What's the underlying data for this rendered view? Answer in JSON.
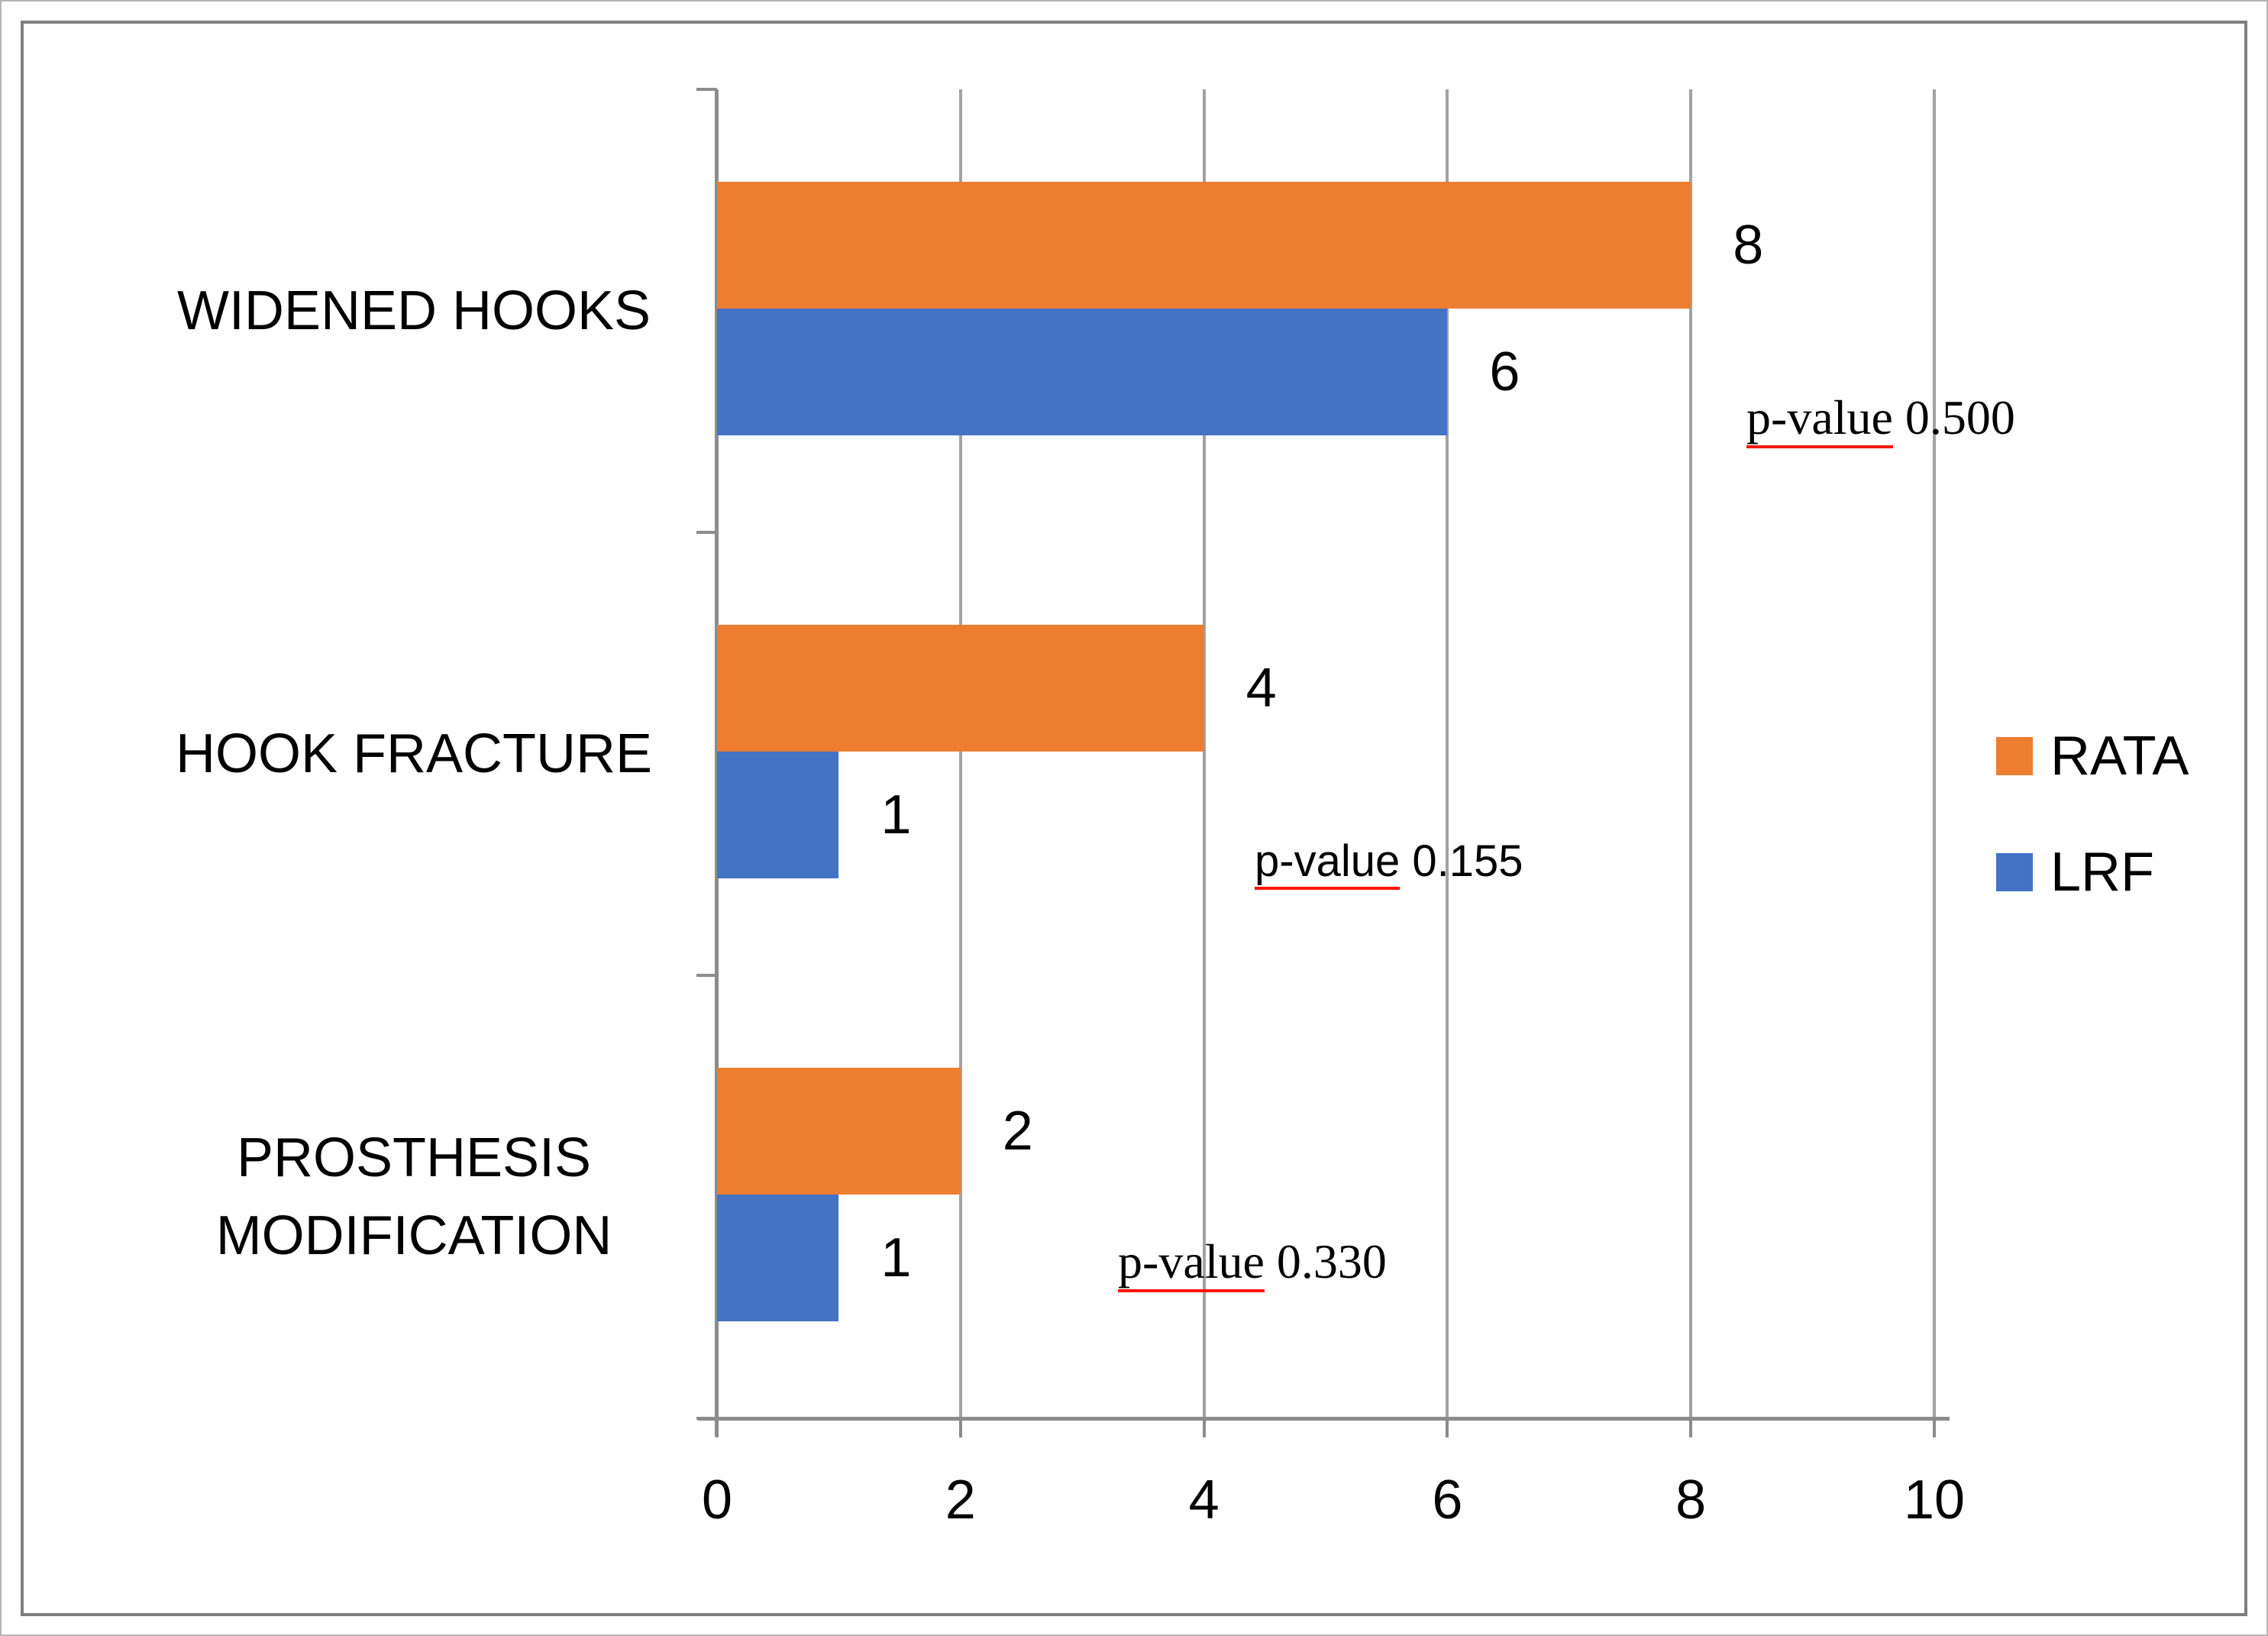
{
  "figure": {
    "background": "#ffffff",
    "frame_border_color": "#7e7e7e",
    "gridline_color": "#a2a2a2",
    "axis_color": "#8c8c8c"
  },
  "chart_data": {
    "type": "bar",
    "orientation": "horizontal",
    "title": "",
    "xlabel": "",
    "ylabel": "",
    "xlim": [
      0,
      10
    ],
    "x_ticks": [
      0,
      2,
      4,
      6,
      8,
      10
    ],
    "x_tick_labels": [
      "0",
      "2",
      "4",
      "6",
      "8",
      "10"
    ],
    "grid": true,
    "legend_position": "right",
    "categories": [
      "WIDENED HOOKS",
      "HOOK FRACTURE",
      "PROSTHESIS MODIFICATION"
    ],
    "series": [
      {
        "name": "RATA",
        "color": "#ED7D31",
        "values": [
          8,
          4,
          2
        ]
      },
      {
        "name": "LRF",
        "color": "#4472C4",
        "values": [
          6,
          1,
          1
        ]
      }
    ],
    "annotations": [
      {
        "label": "p-value",
        "value": " 0.500",
        "category": "WIDENED HOOKS",
        "font": "serif",
        "underline_color": "#ff1500"
      },
      {
        "label": "p-value",
        "value": " 0.155",
        "category": "HOOK FRACTURE",
        "font": "sans",
        "underline_color": "#ff1500"
      },
      {
        "label": "p-value",
        "value": " 0.330",
        "category": "PROSTHESIS MODIFICATION",
        "font": "serif",
        "underline_color": "#ff1500"
      }
    ],
    "legend": [
      "RATA",
      "LRF"
    ]
  }
}
